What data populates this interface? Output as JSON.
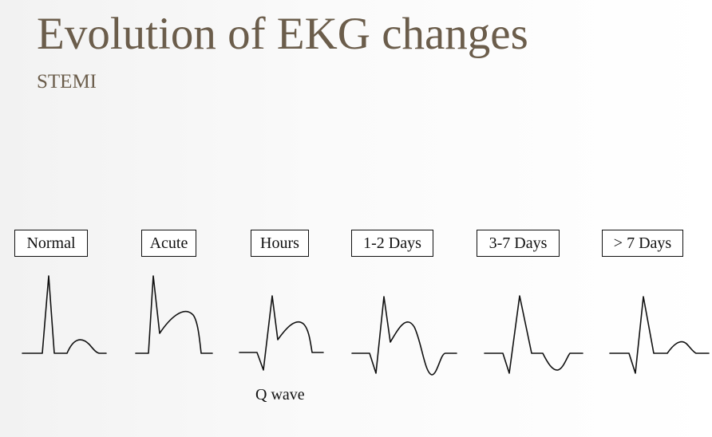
{
  "slide": {
    "title": "Evolution of EKG changes",
    "subtitle": "STEMI"
  },
  "stages": [
    {
      "label": "Normal"
    },
    {
      "label": "Acute"
    },
    {
      "label": "Hours"
    },
    {
      "label": "1-2 Days"
    },
    {
      "label": "3-7 Days"
    },
    {
      "label": "> 7 Days"
    }
  ],
  "annotations": {
    "q_wave": "Q wave"
  },
  "colors": {
    "title": "#6b5d4b",
    "trace": "#111111"
  }
}
